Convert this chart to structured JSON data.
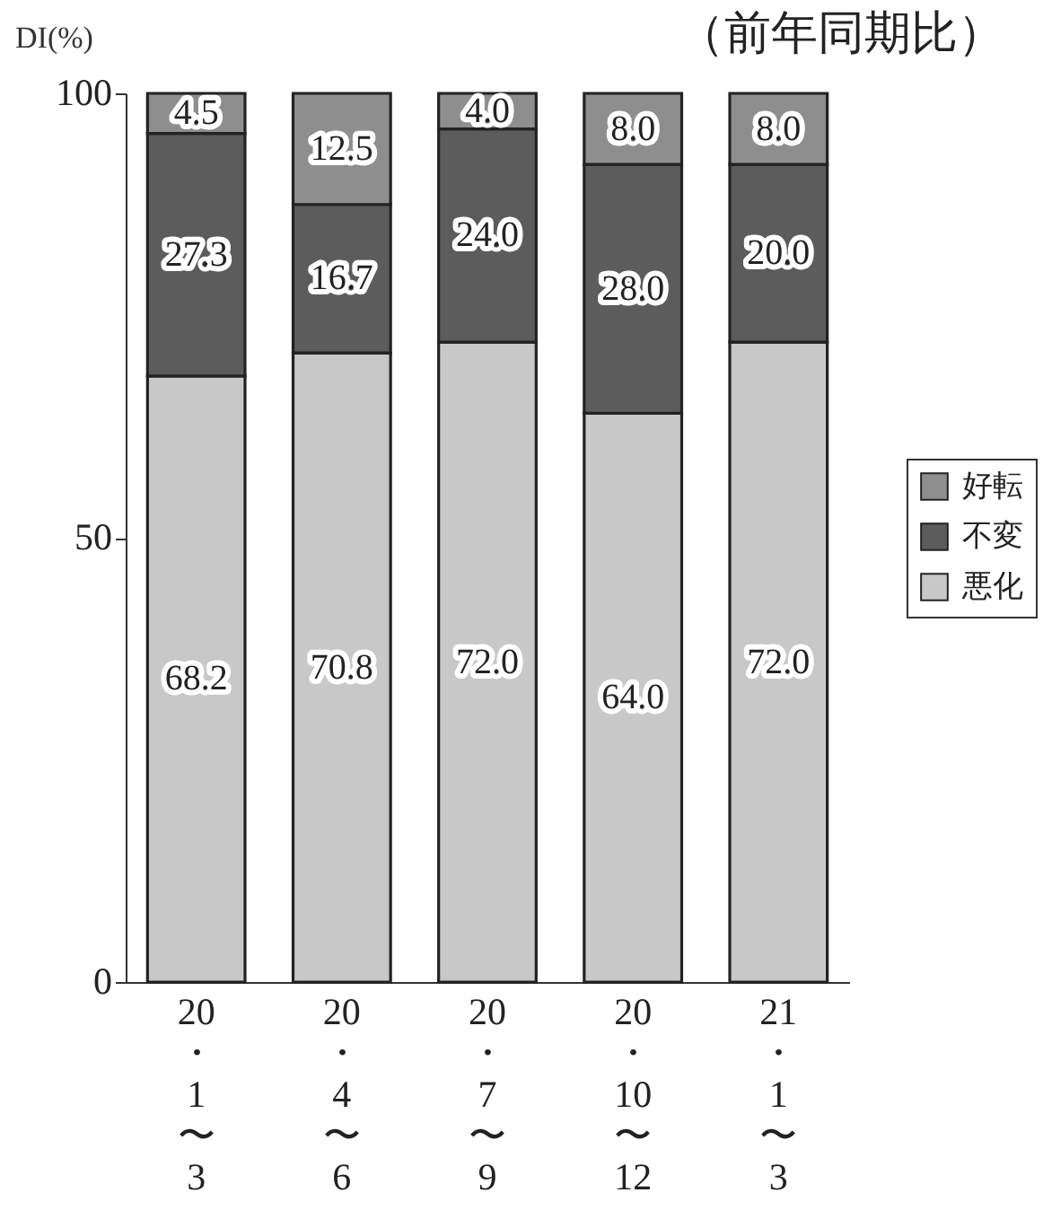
{
  "chart_data": {
    "type": "bar",
    "title": "（前年同期比）",
    "ylabel": "DI(%)",
    "categories": [
      "20・1〜3",
      "20・4〜6",
      "20・7〜9",
      "20・10〜12",
      "21・1〜3"
    ],
    "stacked": true,
    "series": [
      {
        "name": "悪化",
        "color": "#c8c8c8",
        "values": [
          68.2,
          70.8,
          72,
          64,
          72
        ],
        "value_labels": [
          "68.2",
          "70.8",
          "72.0",
          "64.0",
          "72.0"
        ]
      },
      {
        "name": "不変",
        "color": "#5c5c5c",
        "values": [
          27.3,
          16.7,
          24,
          28,
          20
        ],
        "value_labels": [
          "27.3",
          "16.7",
          "24.0",
          "28.0",
          "20.0"
        ]
      },
      {
        "name": "好転",
        "color": "#8e8e8e",
        "values": [
          4.5,
          12.5,
          4,
          8,
          8
        ],
        "value_labels": [
          "4.5",
          "12.5",
          "4.0",
          "8.0",
          "8.0"
        ]
      }
    ],
    "ylim": [
      0,
      100
    ],
    "yticks": [
      0,
      50,
      100
    ],
    "grid": false,
    "legend": "right"
  }
}
